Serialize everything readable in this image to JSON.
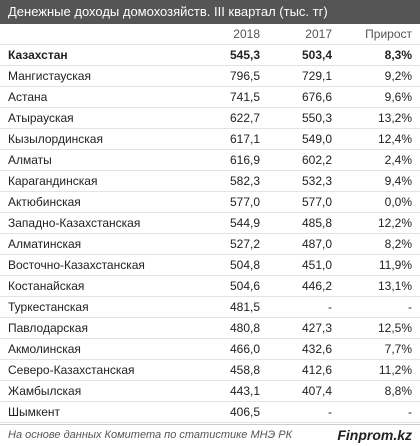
{
  "title": "Денежные доходы домохозяйств. III квартал (тыс. тг)",
  "columns": [
    "",
    "2018",
    "2017",
    "Прирост"
  ],
  "rows": [
    [
      "Казахстан",
      "545,3",
      "503,4",
      "8,3%"
    ],
    [
      "Мангистауская",
      "796,5",
      "729,1",
      "9,2%"
    ],
    [
      "Астана",
      "741,5",
      "676,6",
      "9,6%"
    ],
    [
      "Атырауская",
      "622,7",
      "550,3",
      "13,2%"
    ],
    [
      "Кызылординская",
      "617,1",
      "549,0",
      "12,4%"
    ],
    [
      "Алматы",
      "616,9",
      "602,2",
      "2,4%"
    ],
    [
      "Карагандинская",
      "582,3",
      "532,3",
      "9,4%"
    ],
    [
      "Актюбинская",
      "577,0",
      "577,0",
      "0,0%"
    ],
    [
      "Западно-Казахстанская",
      "544,9",
      "485,8",
      "12,2%"
    ],
    [
      "Алматинская",
      "527,2",
      "487,0",
      "8,2%"
    ],
    [
      "Восточно-Казахстанская",
      "504,8",
      "451,0",
      "11,9%"
    ],
    [
      "Костанайская",
      "504,6",
      "446,2",
      "13,1%"
    ],
    [
      "Туркестанская",
      "481,5",
      "-",
      "-"
    ],
    [
      "Павлодарская",
      "480,8",
      "427,3",
      "12,5%"
    ],
    [
      "Акмолинская",
      "466,0",
      "432,6",
      "7,7%"
    ],
    [
      "Северо-Казахстанская",
      "458,8",
      "412,6",
      "11,2%"
    ],
    [
      "Жамбылская",
      "443,1",
      "407,4",
      "8,8%"
    ],
    [
      "Шымкент",
      "406,5",
      "-",
      "-"
    ]
  ],
  "footer": {
    "source": "На основе данных Комитета по статистике МНЭ РК",
    "brand": "Finprom.kz"
  }
}
